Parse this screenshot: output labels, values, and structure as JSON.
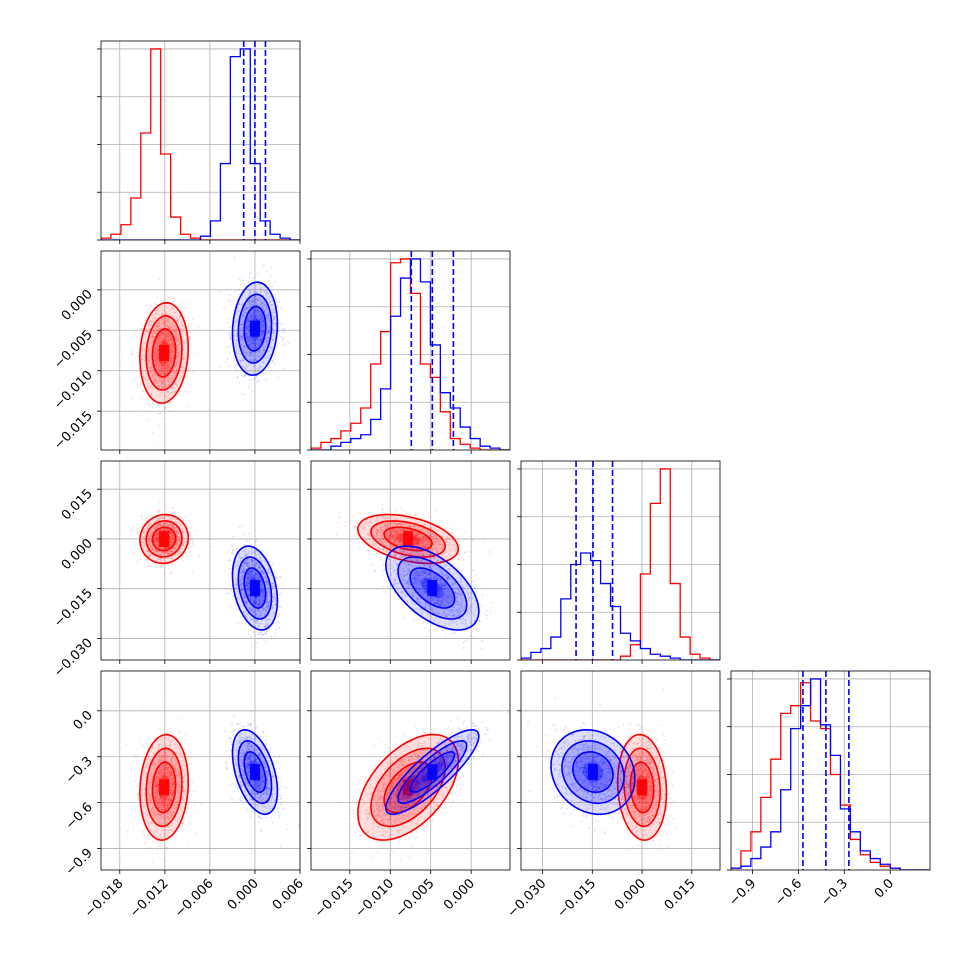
{
  "colors": {
    "series_a": "#ff0000",
    "series_b": "#0000ff",
    "grid": "#b0b0b0"
  },
  "chart_data": {
    "type": "corner",
    "grid": true,
    "parameters": [
      {
        "range": [
          -0.0205,
          0.006
        ],
        "ticks": [
          "−0.018",
          "−0.012",
          "−0.006",
          "0.000",
          "0.006"
        ],
        "tick_values": [
          -0.018,
          -0.012,
          -0.006,
          0.0,
          0.006
        ]
      },
      {
        "range": [
          -0.0198,
          0.0048
        ],
        "ticks": [
          "−0.015",
          "−0.010",
          "−0.005",
          "0.000"
        ],
        "tick_values": [
          -0.015,
          -0.01,
          -0.005,
          0.0
        ]
      },
      {
        "range": [
          -0.0365,
          0.0235
        ],
        "ticks": [
          "−0.030",
          "−0.015",
          "0.000",
          "0.015"
        ],
        "tick_values": [
          -0.03,
          -0.015,
          0.0,
          0.015
        ]
      },
      {
        "range": [
          -1.04,
          0.26
        ],
        "ticks": [
          "−0.9",
          "−0.6",
          "−0.3",
          "0.0"
        ],
        "tick_values": [
          -0.9,
          -0.6,
          -0.3,
          0.0
        ]
      }
    ],
    "series": [
      {
        "color": "red",
        "means": [
          -0.0121,
          -0.0078,
          0.0,
          -0.5
        ],
        "stds": [
          0.0014,
          0.0027,
          0.0032,
          0.15
        ],
        "marginals": [
          [
            0.01,
            0.03,
            0.08,
            0.22,
            0.56,
            1.0,
            0.45,
            0.12,
            0.03,
            0.01,
            0,
            0,
            0,
            0,
            0,
            0,
            0,
            0,
            0,
            0
          ],
          [
            0.01,
            0.04,
            0.06,
            0.1,
            0.14,
            0.22,
            0.45,
            0.62,
            0.98,
            1.0,
            0.82,
            0.45,
            0.38,
            0.2,
            0.06,
            0.03,
            0.01,
            0,
            0,
            0
          ],
          [
            0,
            0,
            0,
            0,
            0,
            0,
            0,
            0,
            0,
            0,
            0.02,
            0.08,
            0.45,
            0.82,
            1.0,
            0.4,
            0.12,
            0.03,
            0.01,
            0
          ],
          [
            0.01,
            0.1,
            0.2,
            0.38,
            0.58,
            0.82,
            0.86,
            0.98,
            0.78,
            0.74,
            0.5,
            0.34,
            0.16,
            0.08,
            0.04,
            0.02,
            0.01,
            0,
            0,
            0
          ]
        ],
        "quantiles": []
      },
      {
        "color": "blue",
        "means": [
          0.0,
          -0.0048,
          -0.0148,
          -0.4
        ],
        "stds": [
          0.0013,
          0.0025,
          0.0055,
          0.12
        ],
        "marginals": [
          [
            0,
            0,
            0,
            0,
            0,
            0,
            0,
            0,
            0,
            0,
            0.02,
            0.1,
            0.4,
            0.96,
            1.0,
            0.4,
            0.1,
            0.03,
            0.01,
            0
          ],
          [
            0,
            0,
            0.02,
            0.04,
            0.06,
            0.08,
            0.16,
            0.32,
            0.7,
            0.9,
            1.0,
            0.88,
            0.55,
            0.3,
            0.22,
            0.12,
            0.06,
            0.02,
            0.01,
            0
          ],
          [
            0.01,
            0.04,
            0.06,
            0.12,
            0.32,
            0.5,
            0.56,
            0.52,
            0.4,
            0.28,
            0.14,
            0.1,
            0.06,
            0.03,
            0.02,
            0.01,
            0,
            0,
            0,
            0
          ],
          [
            0.01,
            0.02,
            0.06,
            0.12,
            0.2,
            0.42,
            0.74,
            0.86,
            1.0,
            0.76,
            0.6,
            0.32,
            0.2,
            0.1,
            0.06,
            0.03,
            0.01,
            0,
            0,
            0
          ]
        ],
        "quantiles": [
          [
            -0.0015,
            0.0,
            0.0014
          ],
          [
            -0.0074,
            -0.0048,
            -0.0022
          ],
          [
            -0.0199,
            -0.0148,
            -0.0089
          ],
          [
            -0.57,
            -0.42,
            -0.27
          ]
        ]
      }
    ],
    "correlations": [
      {
        "pair": [
          1,
          0
        ],
        "red": 0.1,
        "blue": 0.1
      },
      {
        "pair": [
          2,
          0
        ],
        "red": 0.05,
        "blue": -0.3
      },
      {
        "pair": [
          2,
          1
        ],
        "red": -0.4,
        "blue": -0.55
      },
      {
        "pair": [
          3,
          0
        ],
        "red": 0.1,
        "blue": -0.45
      },
      {
        "pair": [
          3,
          1
        ],
        "red": 0.5,
        "blue": 0.85
      },
      {
        "pair": [
          3,
          2
        ],
        "red": -0.1,
        "blue": -0.15
      }
    ]
  }
}
